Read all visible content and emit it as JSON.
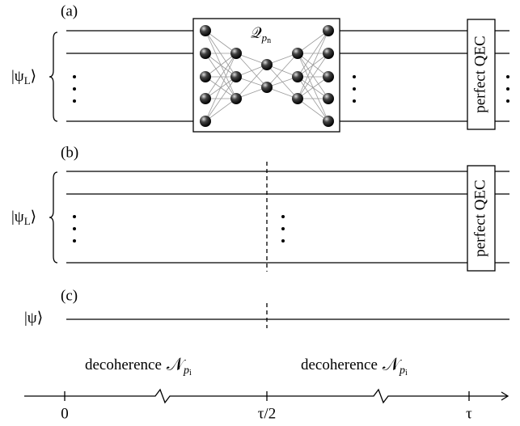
{
  "panels": [
    {
      "label": "(a)",
      "state": {
        "main": "|ψ",
        "sub": "L",
        "end": "⟩"
      },
      "network": {
        "main": "𝒬",
        "sub": "p",
        "subsub": "n"
      },
      "correction": "perfect QEC"
    },
    {
      "label": "(b)",
      "state": {
        "main": "|ψ",
        "sub": "L",
        "end": "⟩"
      },
      "correction": "perfect QEC"
    },
    {
      "label": "(c)",
      "state": {
        "main": "|ψ⟩"
      }
    }
  ],
  "timeline": {
    "segments": [
      {
        "text": "decoherence",
        "main": "𝒩",
        "sub": "p",
        "subsub": "i"
      },
      {
        "text": "decoherence",
        "main": "𝒩",
        "sub": "p",
        "subsub": "i"
      }
    ],
    "ticks": [
      "0",
      "τ/2",
      "τ"
    ]
  }
}
